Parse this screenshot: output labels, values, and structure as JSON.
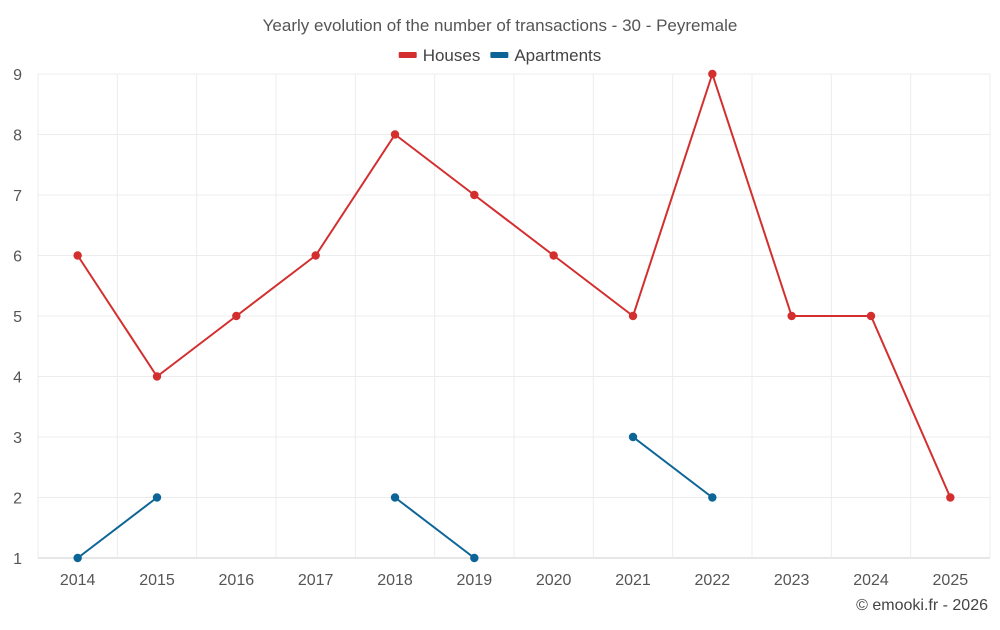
{
  "chart_data": {
    "type": "line",
    "title": "Yearly evolution of the number of transactions - 30 - Peyremale",
    "categories": [
      "2014",
      "2015",
      "2016",
      "2017",
      "2018",
      "2019",
      "2020",
      "2021",
      "2022",
      "2023",
      "2024",
      "2025"
    ],
    "series": [
      {
        "name": "Houses",
        "color": "#d32f2f",
        "values": [
          6,
          4,
          5,
          6,
          8,
          7,
          6,
          5,
          9,
          5,
          5,
          2
        ]
      },
      {
        "name": "Apartments",
        "color": "#0d6597",
        "values": [
          1,
          2,
          null,
          null,
          2,
          1,
          null,
          3,
          2,
          null,
          null,
          null
        ]
      }
    ],
    "yticks": [
      "1",
      "2",
      "3",
      "4",
      "5",
      "6",
      "7",
      "8",
      "9"
    ],
    "ylim": [
      1,
      9
    ],
    "grid": true,
    "legend_position": "top-center",
    "xlabel": "",
    "ylabel": "",
    "credit": "© emooki.fr - 2026"
  }
}
